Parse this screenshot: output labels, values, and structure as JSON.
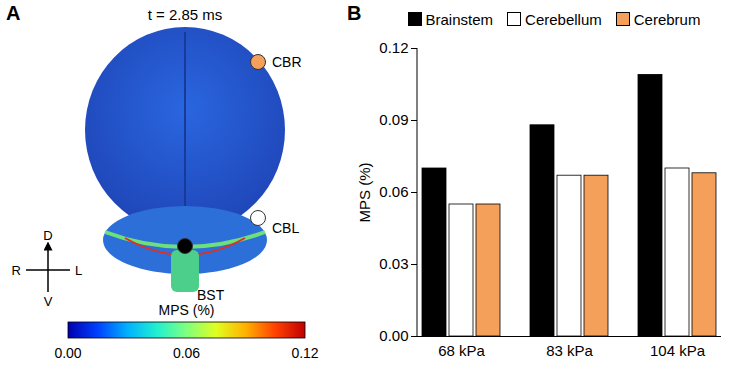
{
  "chart_data": [
    {
      "type": "image",
      "panel": "A",
      "title": "t = 2.85 ms",
      "points": [
        {
          "label": "CBR",
          "color": "#f5a05a"
        },
        {
          "label": "CBL",
          "color": "#ffffff"
        },
        {
          "label": "BST",
          "color": "#000000"
        }
      ],
      "directions": {
        "up": "D",
        "down": "V",
        "left": "R",
        "right": "L"
      },
      "colorbar": {
        "label": "MPS (%)",
        "range": [
          0,
          0.12
        ],
        "ticks": [
          {
            "value": 0,
            "label": "0.00"
          },
          {
            "value": 0.06,
            "label": "0.06"
          },
          {
            "value": 0.12,
            "label": "0.12"
          }
        ]
      }
    },
    {
      "type": "bar",
      "panel": "B",
      "ylabel": "MPS (%)",
      "categories": [
        "68 kPa",
        "83 kPa",
        "104 kPa"
      ],
      "series": [
        {
          "name": "Brainstem",
          "color": "#000000",
          "values": [
            0.07,
            0.088,
            0.109
          ]
        },
        {
          "name": "Cerebellum",
          "color": "#ffffff",
          "values": [
            0.055,
            0.067,
            0.07
          ]
        },
        {
          "name": "Cerebrum",
          "color": "#f5a05a",
          "values": [
            0.055,
            0.067,
            0.068
          ]
        }
      ],
      "ylim": [
        0,
        0.12
      ],
      "yticks": [
        {
          "value": 0,
          "label": "0.00"
        },
        {
          "value": 0.03,
          "label": "0.03"
        },
        {
          "value": 0.06,
          "label": "0.06"
        },
        {
          "value": 0.09,
          "label": "0.09"
        },
        {
          "value": 0.12,
          "label": "0.12"
        }
      ],
      "legend": "top",
      "grid": false
    }
  ]
}
